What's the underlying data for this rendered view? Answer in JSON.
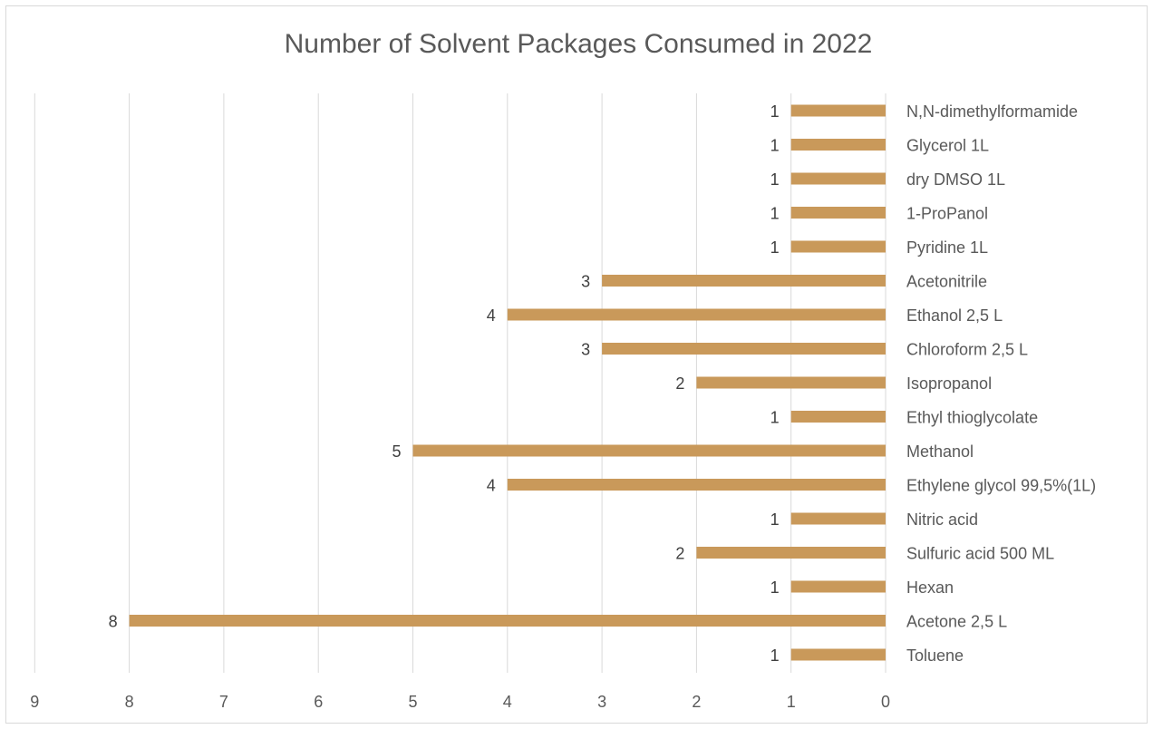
{
  "chart_data": {
    "type": "bar",
    "orientation": "horizontal",
    "x_reversed": true,
    "title": "Number of Solvent Packages Consumed in 2022",
    "categories": [
      "N,N-dimethylformamide",
      "Glycerol 1L",
      "dry DMSO 1L",
      "1-ProPanol",
      "Pyridine 1L",
      "Acetonitrile",
      "Ethanol 2,5 L",
      "Chloroform 2,5 L",
      "Isopropanol",
      "Ethyl thioglycolate",
      "Methanol",
      "Ethylene glycol  99,5%(1L)",
      "Nitric acid",
      "Sulfuric acid 500 ML",
      "Hexan",
      "Acetone 2,5 L",
      "Toluene"
    ],
    "values": [
      1,
      1,
      1,
      1,
      1,
      3,
      4,
      3,
      2,
      1,
      5,
      4,
      1,
      2,
      1,
      8,
      1
    ],
    "xlim": [
      0,
      9
    ],
    "x_ticks": [
      "0",
      "1",
      "2",
      "3",
      "4",
      "5",
      "6",
      "7",
      "8",
      "9"
    ],
    "grid": true,
    "legend": "none",
    "colors": {
      "bar": "#C9995A",
      "grid": "#d9d9d9",
      "text": "#595959"
    }
  }
}
